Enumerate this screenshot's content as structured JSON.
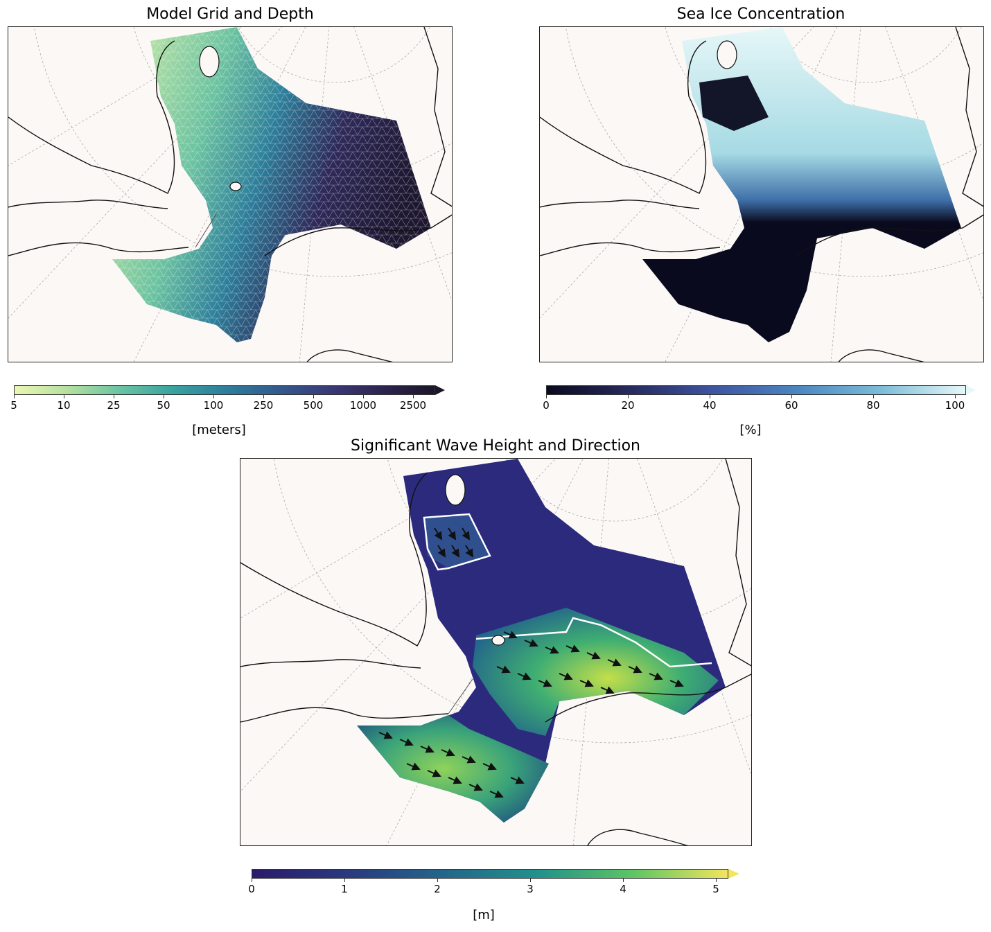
{
  "panels": {
    "depth": {
      "title": "Model Grid and Depth",
      "colorbar": {
        "label": "[meters]",
        "ticks": [
          "5",
          "10",
          "25",
          "50",
          "100",
          "250",
          "500",
          "1000",
          "2500"
        ],
        "colors": [
          "#ecf6b4",
          "#b5e0a0",
          "#6bc3a3",
          "#3aa3a0",
          "#2d7f9b",
          "#335b8e",
          "#3a3a78",
          "#2e2450",
          "#1c1628"
        ],
        "extend": "max"
      }
    },
    "ice": {
      "title": "Sea Ice Concentration",
      "colorbar": {
        "label": "[%]",
        "ticks": [
          "0",
          "20",
          "40",
          "60",
          "80",
          "100"
        ],
        "colors": [
          "#0a0a1e",
          "#272a5e",
          "#3e55a0",
          "#4c86c0",
          "#7dbdd8",
          "#e6f7f8"
        ],
        "extend": "max"
      }
    },
    "wave": {
      "title": "Significant Wave Height and Direction",
      "colorbar": {
        "label": "[m]",
        "ticks": [
          "0",
          "1",
          "2",
          "3",
          "4",
          "5"
        ],
        "colors": [
          "#2a1b6a",
          "#29397f",
          "#23668a",
          "#21918c",
          "#5cc563",
          "#f3e55d"
        ],
        "extend": "max"
      }
    }
  }
}
